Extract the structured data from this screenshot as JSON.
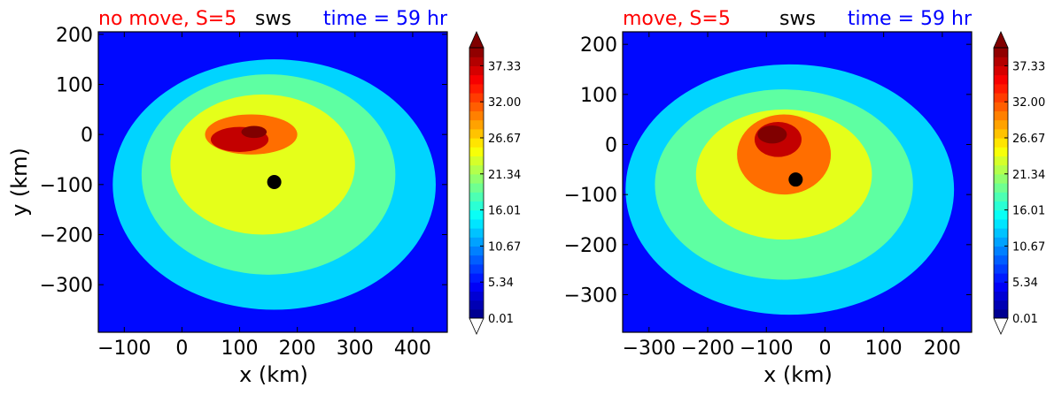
{
  "chart_data": [
    {
      "type": "heatmap",
      "title_left": "no move, S=5",
      "title_center": "sws",
      "title_right": "time = 59 hr",
      "title_left_color": "#ff0000",
      "title_right_color": "#0000ff",
      "xlabel": "x (km)",
      "ylabel": "y (km)",
      "xlim": [
        -145,
        460
      ],
      "ylim": [
        -395,
        205
      ],
      "xticks": [
        -100,
        0,
        100,
        200,
        300,
        400
      ],
      "yticks": [
        200,
        100,
        0,
        -100,
        -200,
        -300
      ],
      "background_level": 4,
      "contours": [
        {
          "level": 10,
          "cx": 160,
          "cy": -100,
          "rx": 280,
          "ry": 250
        },
        {
          "level": 14,
          "cx": 150,
          "cy": -80,
          "rx": 220,
          "ry": 200
        },
        {
          "level": 18,
          "cx": 140,
          "cy": -60,
          "rx": 160,
          "ry": 140
        },
        {
          "level": 23,
          "cx": 120,
          "cy": 0,
          "rx": 80,
          "ry": 40
        },
        {
          "level": 28,
          "cx": 100,
          "cy": -10,
          "rx": 50,
          "ry": 25
        },
        {
          "level": 31,
          "cx": 125,
          "cy": 5,
          "rx": 22,
          "ry": 12
        }
      ],
      "center_marker": {
        "x": 160,
        "y": -95
      },
      "colorbar": {
        "min": 0.01,
        "max": 40,
        "ticks": [
          "0.01",
          "5.34",
          "10.67",
          "16.01",
          "21.34",
          "26.67",
          "32.00",
          "37.33"
        ],
        "tick_values": [
          0.01,
          5.34,
          10.67,
          16.01,
          21.34,
          26.67,
          32.0,
          37.33
        ],
        "colormap": "jet"
      }
    },
    {
      "type": "heatmap",
      "title_left": "move, S=5",
      "title_center": "sws",
      "title_right": "time = 59 hr",
      "title_left_color": "#ff0000",
      "title_right_color": "#0000ff",
      "xlabel": "x (km)",
      "ylabel": "",
      "xlim": [
        -345,
        250
      ],
      "ylim": [
        -375,
        225
      ],
      "xticks": [
        -300,
        -200,
        -100,
        0,
        100,
        200
      ],
      "yticks": [
        200,
        100,
        0,
        -100,
        -200,
        -300
      ],
      "background_level": 4,
      "contours": [
        {
          "level": 10,
          "cx": -60,
          "cy": -90,
          "rx": 280,
          "ry": 250
        },
        {
          "level": 14,
          "cx": -70,
          "cy": -80,
          "rx": 220,
          "ry": 190
        },
        {
          "level": 18,
          "cx": -70,
          "cy": -60,
          "rx": 150,
          "ry": 130
        },
        {
          "level": 23,
          "cx": -70,
          "cy": -20,
          "rx": 80,
          "ry": 80
        },
        {
          "level": 28,
          "cx": -80,
          "cy": 10,
          "rx": 40,
          "ry": 35
        },
        {
          "level": 34,
          "cx": -90,
          "cy": 20,
          "rx": 25,
          "ry": 18
        }
      ],
      "center_marker": {
        "x": -50,
        "y": -70
      },
      "colorbar": {
        "min": 0.01,
        "max": 40,
        "ticks": [
          "0.01",
          "5.34",
          "10.67",
          "16.01",
          "21.34",
          "26.67",
          "32.00",
          "37.33"
        ],
        "tick_values": [
          0.01,
          5.34,
          10.67,
          16.01,
          21.34,
          26.67,
          32.0,
          37.33
        ],
        "colormap": "jet"
      }
    }
  ]
}
